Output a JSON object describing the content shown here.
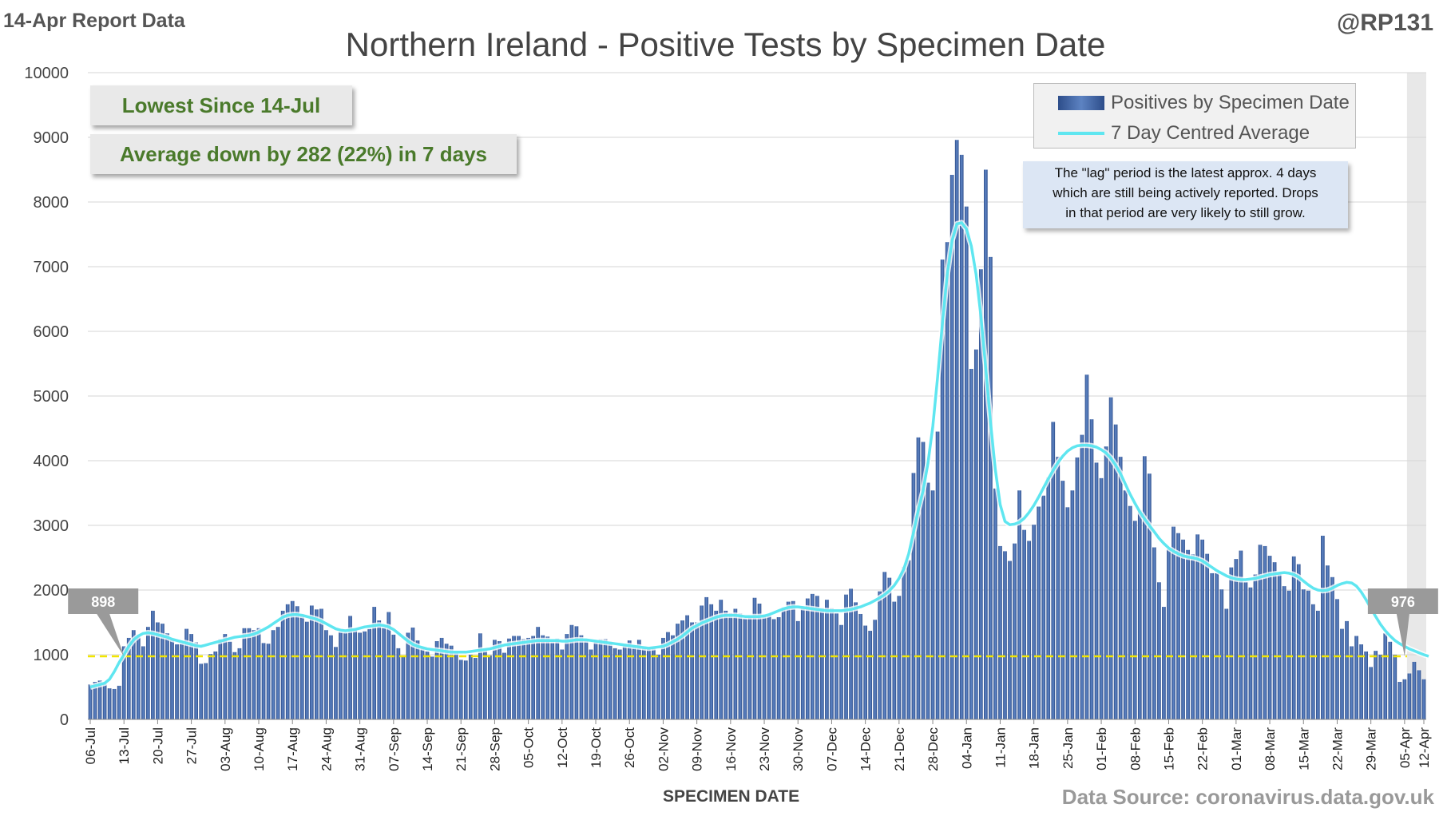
{
  "header": {
    "report_label": "14-Apr Report Data",
    "handle": "@RP131",
    "title": "Northern Ireland - Positive Tests by Specimen Date"
  },
  "callouts": {
    "lowest": "Lowest Since 14-Jul",
    "average": "Average down by 282 (22%) in 7 days"
  },
  "legend": {
    "bars": "Positives by Specimen Date",
    "line": "7 Day Centred Average"
  },
  "note": {
    "lines": [
      "The \"lag\" period is the latest approx. 4 days",
      "which are still being actively reported. Drops",
      "in that period are very likely to still grow."
    ]
  },
  "footer": {
    "x_label": "SPECIMEN DATE",
    "source": "Data Source: coronavirus.data.gov.uk"
  },
  "colors": {
    "bar": "#2f4f8c",
    "bar_highlight": "#5f86c6",
    "average_line": "#5fe6f0",
    "threshold_line": "#f2e600",
    "marker": "#9a9a9a",
    "callout_text": "#4a7a2b"
  },
  "chart_data": {
    "type": "bar",
    "title": "Northern Ireland - Positive Tests by Specimen Date",
    "xlabel": "SPECIMEN DATE",
    "ylabel": "",
    "ylim": [
      0,
      10000
    ],
    "yticks": [
      0,
      1000,
      2000,
      3000,
      4000,
      5000,
      6000,
      7000,
      8000,
      9000,
      10000
    ],
    "grid": true,
    "legend_position": "top-right",
    "x_start": "06-Jul",
    "x_end": "12-Apr",
    "x_ticks": [
      "06-Jul",
      "13-Jul",
      "20-Jul",
      "27-Jul",
      "03-Aug",
      "10-Aug",
      "17-Aug",
      "24-Aug",
      "31-Aug",
      "07-Sep",
      "14-Sep",
      "21-Sep",
      "28-Sep",
      "05-Oct",
      "12-Oct",
      "19-Oct",
      "26-Oct",
      "02-Nov",
      "09-Nov",
      "16-Nov",
      "23-Nov",
      "30-Nov",
      "07-Dec",
      "14-Dec",
      "21-Dec",
      "28-Dec",
      "04-Jan",
      "11-Jan",
      "18-Jan",
      "25-Jan",
      "01-Feb",
      "08-Feb",
      "15-Feb",
      "22-Feb",
      "01-Mar",
      "08-Mar",
      "15-Mar",
      "22-Mar",
      "29-Mar",
      "05-Apr",
      "12-Apr"
    ],
    "series": [
      {
        "name": "Positives by Specimen Date",
        "type": "bar",
        "values": [
          540,
          580,
          600,
          560,
          480,
          470,
          520,
          1130,
          1260,
          1380,
          1310,
          1130,
          1430,
          1680,
          1500,
          1480,
          1330,
          1250,
          1160,
          1170,
          1400,
          1320,
          1190,
          860,
          870,
          1010,
          1050,
          1240,
          1320,
          1200,
          1040,
          1100,
          1410,
          1410,
          1380,
          1410,
          1180,
          1170,
          1380,
          1430,
          1680,
          1780,
          1830,
          1750,
          1610,
          1510,
          1760,
          1700,
          1710,
          1380,
          1300,
          1120,
          1350,
          1340,
          1600,
          1380,
          1340,
          1360,
          1400,
          1740,
          1530,
          1420,
          1660,
          1310,
          1100,
          970,
          1340,
          1420,
          1220,
          1110,
          1050,
          970,
          1210,
          1260,
          1170,
          1140,
          1040,
          920,
          910,
          1000,
          950,
          1330,
          1090,
          990,
          1230,
          1210,
          1030,
          1250,
          1290,
          1290,
          1240,
          1260,
          1290,
          1430,
          1300,
          1280,
          1190,
          1250,
          1080,
          1320,
          1460,
          1440,
          1300,
          1230,
          1080,
          1210,
          1240,
          1240,
          1200,
          1100,
          1080,
          1170,
          1220,
          1110,
          1230,
          1130,
          1090,
          1120,
          1000,
          1260,
          1350,
          1300,
          1480,
          1530,
          1610,
          1500,
          1500,
          1760,
          1890,
          1780,
          1680,
          1850,
          1680,
          1640,
          1710,
          1640,
          1560,
          1600,
          1880,
          1790,
          1620,
          1600,
          1550,
          1580,
          1730,
          1820,
          1830,
          1520,
          1720,
          1870,
          1940,
          1910,
          1720,
          1850,
          1720,
          1640,
          1460,
          1930,
          2020,
          1810,
          1630,
          1450,
          1370,
          1540,
          1980,
          2280,
          2190,
          1820,
          1910,
          2360,
          2460,
          3810,
          4360,
          4290,
          3660,
          3540,
          4450,
          7110,
          7380,
          8420,
          8960,
          8730,
          7930,
          5420,
          5720,
          6960,
          8500,
          7150,
          3570,
          2680,
          2600,
          2450,
          2720,
          3540,
          2930,
          2760,
          3010,
          3290,
          3460,
          3740,
          4600,
          4060,
          3690,
          3280,
          3540,
          4050,
          4400,
          5330,
          4640,
          3970,
          3730,
          4220,
          4980,
          4560,
          4060,
          3540,
          3300,
          3070,
          3230,
          4070,
          3800,
          2660,
          2120,
          1740,
          2630,
          2980,
          2880,
          2780,
          2620,
          2550,
          2860,
          2780,
          2560,
          2260,
          2260,
          2010,
          1710,
          2350,
          2480,
          2610,
          2120,
          2040,
          2240,
          2700,
          2680,
          2530,
          2430,
          2270,
          2060,
          1990,
          2520,
          2400,
          2010,
          1990,
          1780,
          1680,
          2840,
          2380,
          2200,
          1860,
          1400,
          1520,
          1130,
          1290,
          1160,
          1050,
          810,
          1060,
          1000,
          1330,
          1200,
          1000,
          580,
          620,
          710,
          890,
          760,
          620
        ]
      },
      {
        "name": "7 Day Centred Average",
        "type": "line",
        "values": [
          500,
          520,
          540,
          560,
          620,
          740,
          880,
          1000,
          1130,
          1230,
          1290,
          1330,
          1340,
          1330,
          1310,
          1290,
          1270,
          1240,
          1220,
          1200,
          1180,
          1160,
          1140,
          1130,
          1150,
          1170,
          1190,
          1210,
          1230,
          1250,
          1270,
          1280,
          1290,
          1300,
          1320,
          1350,
          1390,
          1430,
          1480,
          1530,
          1580,
          1610,
          1620,
          1620,
          1610,
          1590,
          1570,
          1550,
          1520,
          1480,
          1440,
          1400,
          1380,
          1370,
          1380,
          1390,
          1410,
          1430,
          1440,
          1450,
          1460,
          1450,
          1430,
          1390,
          1330,
          1270,
          1210,
          1160,
          1130,
          1110,
          1090,
          1080,
          1070,
          1060,
          1050,
          1040,
          1040,
          1040,
          1040,
          1050,
          1060,
          1070,
          1080,
          1090,
          1110,
          1130,
          1150,
          1160,
          1170,
          1180,
          1190,
          1200,
          1210,
          1220,
          1220,
          1220,
          1220,
          1220,
          1210,
          1210,
          1220,
          1230,
          1230,
          1230,
          1220,
          1210,
          1200,
          1190,
          1180,
          1170,
          1160,
          1150,
          1140,
          1130,
          1120,
          1110,
          1100,
          1110,
          1120,
          1130,
          1160,
          1200,
          1240,
          1290,
          1350,
          1410,
          1450,
          1490,
          1520,
          1550,
          1580,
          1600,
          1610,
          1610,
          1610,
          1600,
          1590,
          1590,
          1590,
          1590,
          1600,
          1620,
          1650,
          1680,
          1710,
          1730,
          1740,
          1740,
          1730,
          1720,
          1710,
          1700,
          1690,
          1680,
          1680,
          1680,
          1680,
          1690,
          1700,
          1720,
          1740,
          1770,
          1800,
          1840,
          1880,
          1930,
          1990,
          2070,
          2180,
          2330,
          2560,
          2890,
          3240,
          3540,
          3960,
          4530,
          5290,
          6120,
          6870,
          7400,
          7660,
          7680,
          7580,
          7320,
          6880,
          6240,
          5430,
          4590,
          3860,
          3320,
          3060,
          3010,
          3020,
          3050,
          3110,
          3200,
          3310,
          3440,
          3580,
          3720,
          3850,
          3970,
          4070,
          4150,
          4200,
          4230,
          4240,
          4240,
          4230,
          4210,
          4170,
          4120,
          4040,
          3930,
          3800,
          3640,
          3480,
          3340,
          3210,
          3100,
          3000,
          2900,
          2800,
          2720,
          2650,
          2600,
          2560,
          2530,
          2510,
          2500,
          2480,
          2450,
          2400,
          2350,
          2300,
          2260,
          2220,
          2190,
          2170,
          2160,
          2160,
          2170,
          2180,
          2200,
          2220,
          2240,
          2250,
          2260,
          2270,
          2260,
          2240,
          2200,
          2140,
          2080,
          2030,
          2000,
          1990,
          2000,
          2030,
          2070,
          2100,
          2120,
          2110,
          2060,
          1970,
          1850,
          1720,
          1590,
          1470,
          1370,
          1290,
          1220,
          1170,
          1130,
          1090,
          1060,
          1030,
          1000,
          976
        ]
      }
    ],
    "reference_line": {
      "value": 976,
      "style": "dashed"
    },
    "annotations": [
      {
        "label": "898",
        "at": "13-Jul"
      },
      {
        "label": "976",
        "at": "08-Apr"
      }
    ],
    "lag_period_days": 4
  }
}
